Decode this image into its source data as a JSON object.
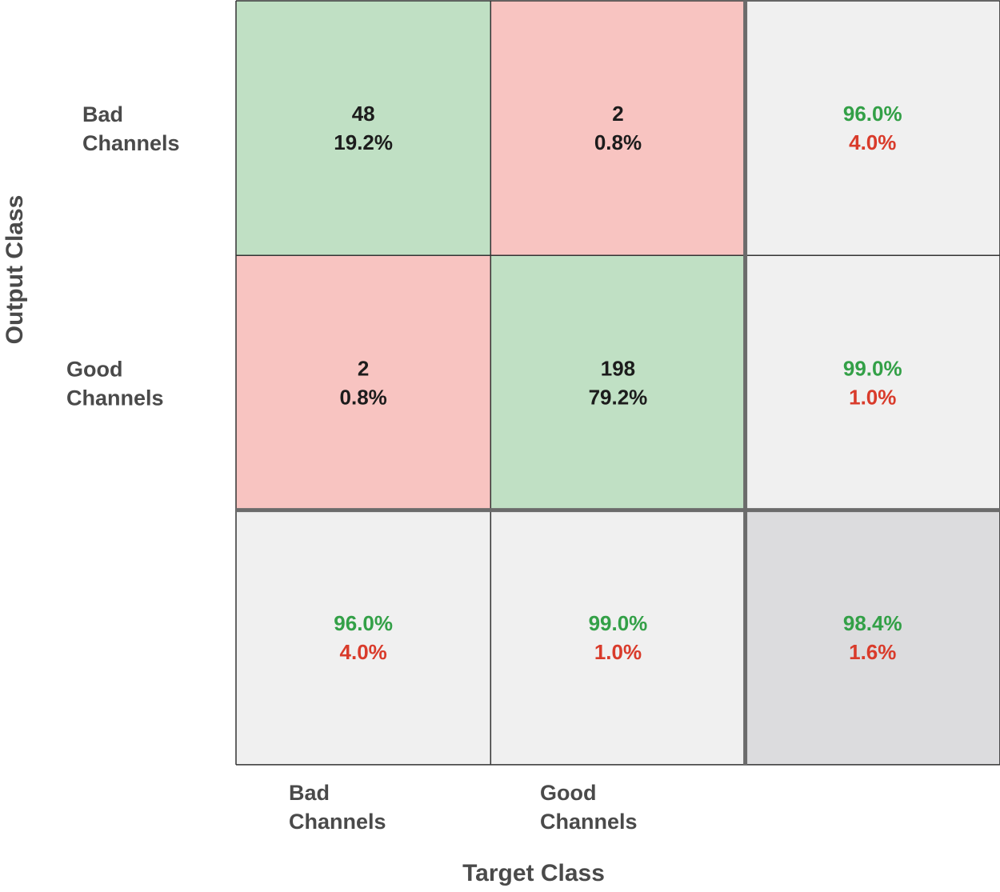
{
  "chart_data": {
    "type": "heatmap",
    "subtype": "confusion-matrix",
    "title": "",
    "xlabel": "Target Class",
    "ylabel": "Output Class",
    "classes": [
      [
        "Bad",
        "Channels"
      ],
      [
        "Good",
        "Channels"
      ]
    ],
    "matrix": [
      {
        "count": "48",
        "percent": "19.2%",
        "kind": "correct"
      },
      {
        "count": "2",
        "percent": "0.8%",
        "kind": "incorrect"
      },
      {
        "count": "2",
        "percent": "0.8%",
        "kind": "incorrect"
      },
      {
        "count": "198",
        "percent": "79.2%",
        "kind": "correct"
      }
    ],
    "row_summary": [
      {
        "correct": "96.0%",
        "incorrect": "4.0%"
      },
      {
        "correct": "99.0%",
        "incorrect": "1.0%"
      }
    ],
    "column_summary": [
      {
        "correct": "96.0%",
        "incorrect": "4.0%"
      },
      {
        "correct": "99.0%",
        "incorrect": "1.0%"
      }
    ],
    "overall": {
      "correct": "98.4%",
      "incorrect": "1.6%"
    },
    "grid": true,
    "legend": "none"
  },
  "colors": {
    "correct_cell": "#c0e0c4",
    "incorrect_cell": "#f8c4c1",
    "summary_cell": "#f0f0f0",
    "overall_cell": "#dcdcde",
    "count_text": "#1c1c1c",
    "correct_text": "#33a047",
    "incorrect_text": "#d93b2b",
    "label_text": "#4a4a4a",
    "grid_line": "#333333",
    "divider_line": "#6b6b6b"
  }
}
